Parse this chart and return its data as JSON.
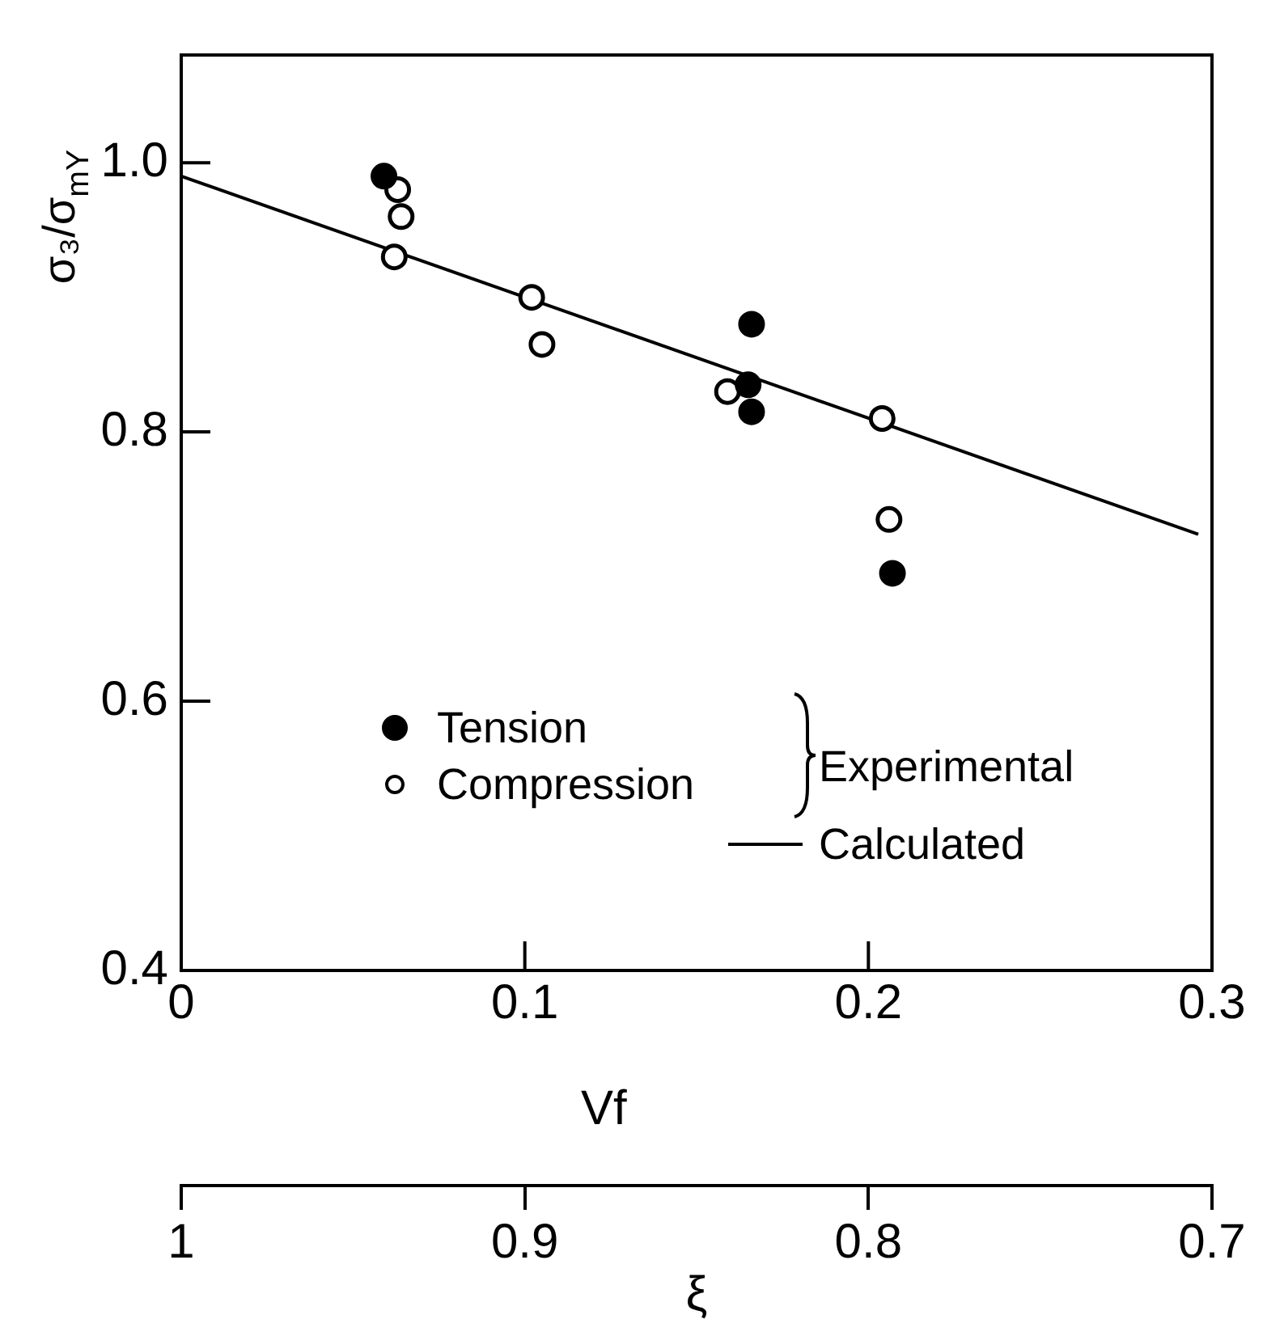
{
  "chart_data": {
    "type": "scatter",
    "xlabel": "Vf",
    "ylabel": "σ₃/σ$_{mY}$",
    "x2label": "ξ",
    "xlim": [
      0,
      0.3
    ],
    "xticks": [
      0,
      0.1,
      0.2,
      0.3
    ],
    "ylim": [
      0.4,
      1.08
    ],
    "yticks": [
      0.4,
      0.6,
      0.8,
      {
        "value": 1,
        "label": "1.0"
      }
    ],
    "x2lim": [
      1,
      0.7
    ],
    "x2ticks": [
      1,
      0.9,
      0.8,
      0.7
    ],
    "grid": false,
    "legend": "bottom left",
    "annotations": [
      "Experimental"
    ],
    "series": [
      {
        "name": "Tension",
        "marker": "circle",
        "color": "#000000",
        "x": [
          0.059,
          0.166,
          0.165,
          0.166,
          0.207
        ],
        "values": [
          0.99,
          0.88,
          0.835,
          0.815,
          0.695
        ]
      },
      {
        "name": "Compression",
        "marker": "circle",
        "color": "#ffffff",
        "x": [
          0.063,
          0.064,
          0.062,
          0.102,
          0.105,
          0.159,
          0.204,
          0.206
        ],
        "values": [
          0.98,
          0.96,
          0.93,
          0.9,
          0.865,
          0.83,
          0.81,
          0.735
        ]
      },
      {
        "name": "Calculated",
        "type": "line",
        "marker": "none",
        "color": "#000000",
        "x": [
          0,
          0.296
        ],
        "values": [
          0.99,
          0.724
        ]
      }
    ]
  }
}
